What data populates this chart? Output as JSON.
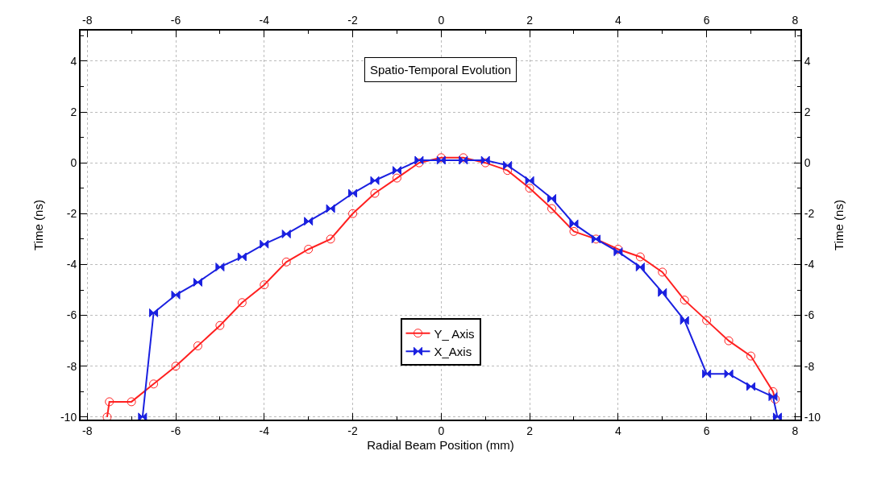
{
  "chart_data": {
    "type": "line",
    "xlabel": "Radial Beam Position (mm)",
    "ylabel": "Time (ns)",
    "y2label": "Time (ns)",
    "annotations": [
      "Spatio-Temporal Evolution"
    ],
    "xlim": [
      -8.15,
      8.12
    ],
    "xticks": [
      -8,
      -6,
      -4,
      -2,
      0,
      2,
      4,
      6,
      8
    ],
    "x2lim": [
      -8.15,
      8.12
    ],
    "x2ticks": [
      -8,
      -6,
      -4,
      -2,
      0,
      2,
      4,
      6,
      8
    ],
    "ylim": [
      -10.1,
      5.2
    ],
    "yticks": [
      -10,
      -8,
      -6,
      -4,
      -2,
      0,
      2,
      4
    ],
    "y2lim": [
      -10.1,
      5.2
    ],
    "y2ticks": [
      -10,
      -8,
      -6,
      -4,
      -2,
      0,
      2,
      4
    ],
    "grid": true,
    "legend": "bottom",
    "line_style": "solid",
    "series": [
      {
        "name": "Y_ Axis",
        "color": "#ff2020",
        "marker": "circle",
        "x": [
          -7.55,
          -7.5,
          -7,
          -6.5,
          -6,
          -5.5,
          -5,
          -4.5,
          -4,
          -3.5,
          -3,
          -2.5,
          -2,
          -1.5,
          -1,
          -0.5,
          0,
          0.5,
          1,
          1.5,
          2,
          2.5,
          3,
          3.5,
          4,
          4.5,
          5,
          5.5,
          6,
          6.5,
          7,
          7.5,
          7.55
        ],
        "values": [
          -10,
          -9.4,
          -9.4,
          -8.7,
          -8.0,
          -7.2,
          -6.4,
          -5.5,
          -4.8,
          -3.9,
          -3.4,
          -3.0,
          -2.0,
          -1.2,
          -0.6,
          0.0,
          0.2,
          0.2,
          0.0,
          -0.3,
          -1.0,
          -1.8,
          -2.7,
          -3.0,
          -3.4,
          -3.7,
          -4.3,
          -5.4,
          -6.2,
          -7.0,
          -7.6,
          -9.0,
          -9.3
        ]
      },
      {
        "name": "X_Axis",
        "color": "#1a20e0",
        "marker": "diamond",
        "x": [
          -6.75,
          -6.5,
          -6,
          -5.5,
          -5,
          -4.5,
          -4,
          -3.5,
          -3,
          -2.5,
          -2,
          -1.5,
          -1,
          -0.5,
          0,
          0.5,
          1,
          1.5,
          2,
          2.5,
          3,
          3.5,
          4,
          4.5,
          5,
          5.5,
          6,
          6.5,
          7,
          7.5,
          7.6
        ],
        "values": [
          -10,
          -5.9,
          -5.2,
          -4.7,
          -4.1,
          -3.7,
          -3.2,
          -2.8,
          -2.3,
          -1.8,
          -1.2,
          -0.7,
          -0.3,
          0.1,
          0.1,
          0.1,
          0.1,
          -0.1,
          -0.7,
          -1.4,
          -2.4,
          -3.0,
          -3.5,
          -4.1,
          -5.1,
          -6.2,
          -8.3,
          -8.3,
          -8.8,
          -9.2,
          -10
        ]
      }
    ]
  }
}
